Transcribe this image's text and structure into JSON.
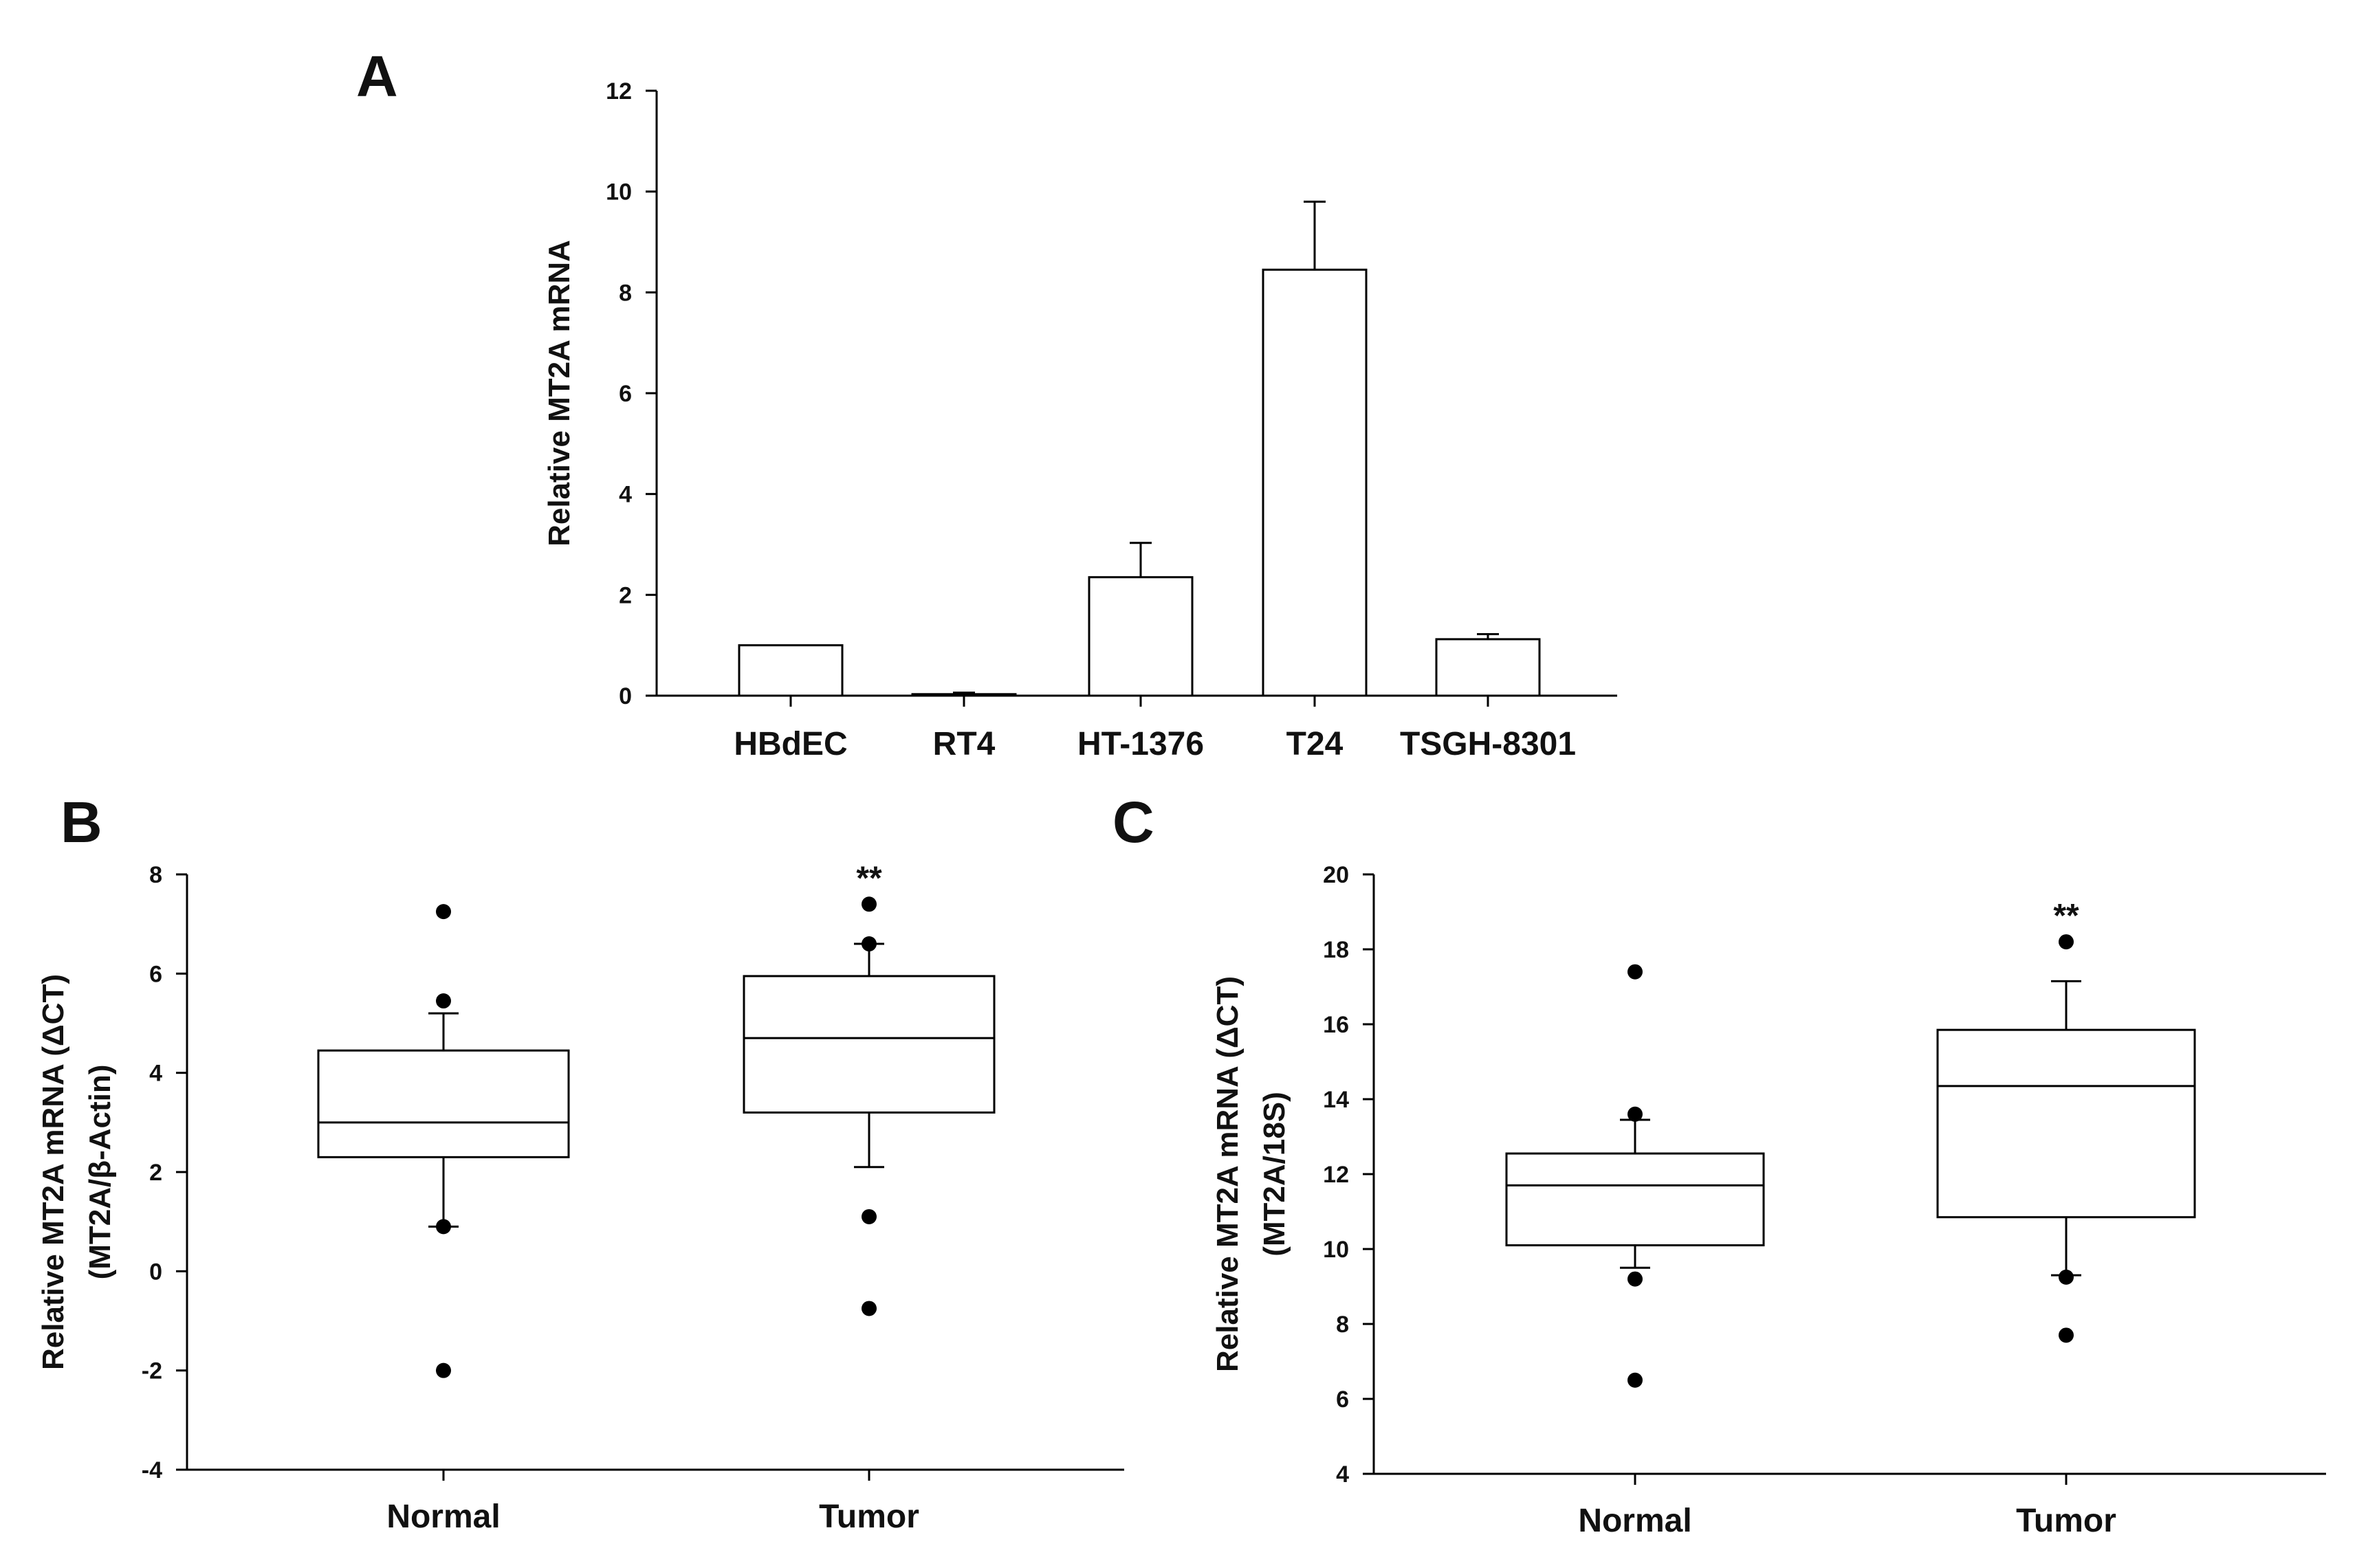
{
  "chart_data": [
    {
      "panel": "A",
      "type": "bar",
      "title": "",
      "xlabel": "",
      "ylabel": "Relative MT2A mRNA",
      "ylim": [
        0,
        12
      ],
      "yticks": [
        0,
        2,
        4,
        6,
        8,
        10,
        12
      ],
      "categories": [
        "HBdEC",
        "RT4",
        "HT-1376",
        "T24",
        "TSGH-8301"
      ],
      "values": [
        1.0,
        0.03,
        2.35,
        8.45,
        1.12
      ],
      "errors": [
        0.0,
        0.03,
        0.68,
        1.35,
        0.1
      ]
    },
    {
      "panel": "B",
      "type": "box",
      "title": "",
      "xlabel": "",
      "ylabel": [
        "Relative MT2A mRNA (ΔCT)",
        "(MT2A/β-Actin)"
      ],
      "ylim": [
        -4,
        8
      ],
      "yticks": [
        -4,
        -2,
        0,
        2,
        4,
        6,
        8
      ],
      "categories": [
        "Normal",
        "Tumor"
      ],
      "significance": [
        "",
        "**"
      ],
      "boxes": [
        {
          "name": "Normal",
          "q1": 2.3,
          "median": 3.0,
          "q3": 4.45,
          "whisker_low": 0.9,
          "whisker_high": 5.2,
          "outliers": [
            7.25,
            5.45,
            0.9,
            -2.0
          ]
        },
        {
          "name": "Tumor",
          "q1": 3.2,
          "median": 4.7,
          "q3": 5.95,
          "whisker_low": 2.1,
          "whisker_high": 6.6,
          "outliers": [
            7.4,
            6.6,
            1.1,
            -0.75
          ]
        }
      ]
    },
    {
      "panel": "C",
      "type": "box",
      "title": "",
      "xlabel": "",
      "ylabel": [
        "Relative MT2A mRNA (ΔCT)",
        "(MT2A/18S)"
      ],
      "ylim": [
        4,
        20
      ],
      "yticks": [
        4,
        6,
        8,
        10,
        12,
        14,
        16,
        18,
        20
      ],
      "categories": [
        "Normal",
        "Tumor"
      ],
      "significance": [
        "",
        "**"
      ],
      "boxes": [
        {
          "name": "Normal",
          "q1": 10.1,
          "median": 11.7,
          "q3": 12.55,
          "whisker_low": 9.5,
          "whisker_high": 13.45,
          "outliers": [
            17.4,
            13.6,
            9.2,
            6.5
          ]
        },
        {
          "name": "Tumor",
          "q1": 10.85,
          "median": 14.35,
          "q3": 15.85,
          "whisker_low": 9.3,
          "whisker_high": 17.15,
          "outliers": [
            18.2,
            9.25,
            7.7
          ]
        }
      ]
    }
  ]
}
